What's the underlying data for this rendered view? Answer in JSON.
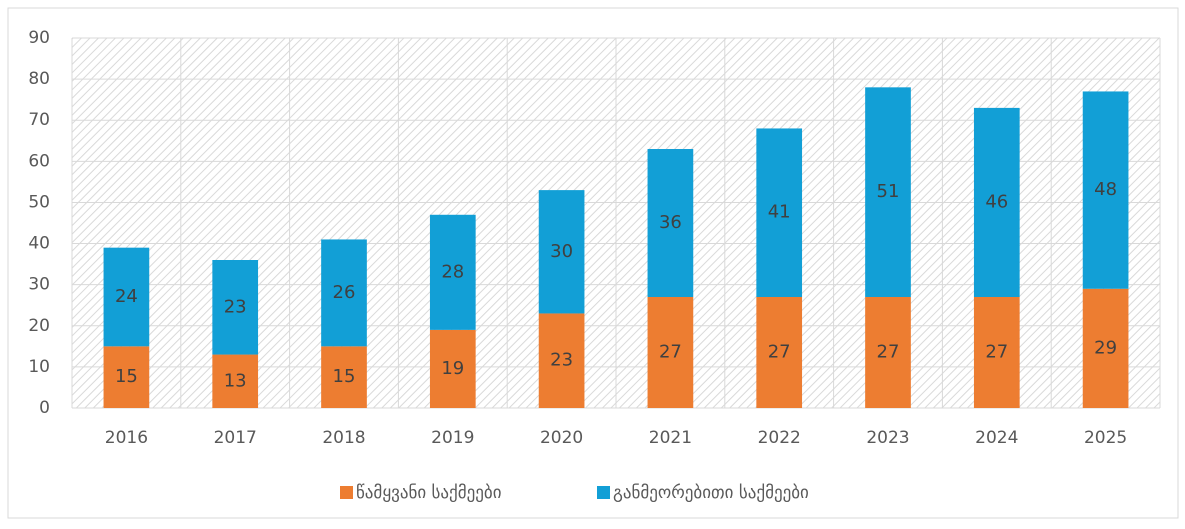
{
  "chart_data": {
    "type": "stacked_bar",
    "categories": [
      "2016",
      "2017",
      "2018",
      "2019",
      "2020",
      "2021",
      "2022",
      "2023",
      "2024",
      "2025"
    ],
    "series": [
      {
        "name": "წამყვანი საქმეები",
        "color": "#ed7d31",
        "values": [
          15,
          13,
          15,
          19,
          23,
          27,
          27,
          27,
          27,
          29
        ]
      },
      {
        "name": "განმეორებითი საქმეები",
        "color": "#129fd6",
        "values": [
          24,
          23,
          26,
          28,
          30,
          36,
          41,
          51,
          46,
          48
        ]
      }
    ],
    "ylim": [
      0,
      90
    ],
    "yticks": [
      0,
      10,
      20,
      30,
      40,
      50,
      60,
      70,
      80,
      90
    ],
    "grid": true,
    "legend": "bottom"
  }
}
